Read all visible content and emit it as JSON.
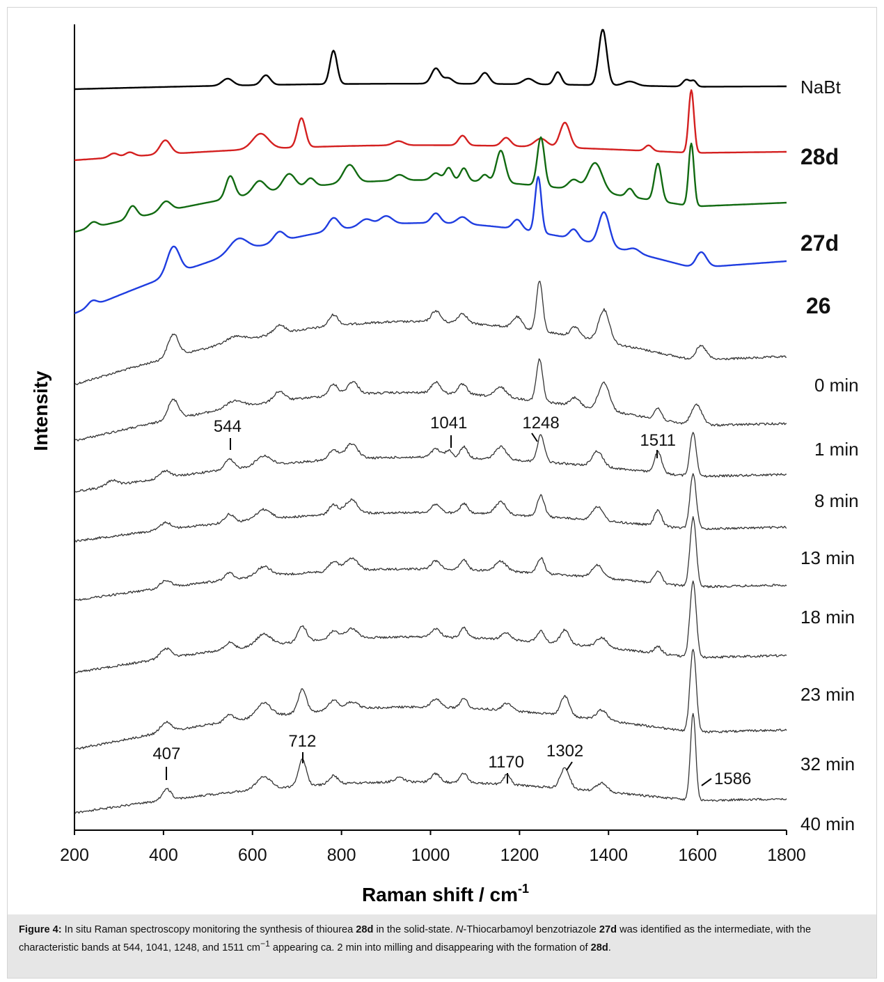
{
  "chart_data": {
    "type": "line",
    "xlabel": "Raman shift / cm",
    "xlabel_superscript": "-1",
    "ylabel": "Intensity",
    "xlim": [
      200,
      1800
    ],
    "xticks": [
      200,
      400,
      600,
      800,
      1000,
      1200,
      1400,
      1600,
      1800
    ],
    "series": [
      {
        "name": "NaBt",
        "bold": false,
        "color": "#000000"
      },
      {
        "name": "28d",
        "bold": true,
        "color": "#d42020"
      },
      {
        "name": "27d",
        "bold": true,
        "color": "#116a11"
      },
      {
        "name": "26",
        "bold": true,
        "color": "#1f3de0"
      },
      {
        "name": "0 min",
        "bold": false,
        "color": "#333333"
      },
      {
        "name": "1 min",
        "bold": false,
        "color": "#333333"
      },
      {
        "name": "8 min",
        "bold": false,
        "color": "#333333"
      },
      {
        "name": "13 min",
        "bold": false,
        "color": "#333333"
      },
      {
        "name": "18 min",
        "bold": false,
        "color": "#333333"
      },
      {
        "name": "23 min",
        "bold": false,
        "color": "#333333"
      },
      {
        "name": "32 min",
        "bold": false,
        "color": "#333333"
      },
      {
        "name": "40 min",
        "bold": false,
        "color": "#333333"
      }
    ],
    "annotations": [
      {
        "text": "544",
        "x": 544,
        "series": "1 min"
      },
      {
        "text": "1041",
        "x": 1041,
        "series": "1 min"
      },
      {
        "text": "1248",
        "x": 1248,
        "series": "1 min"
      },
      {
        "text": "1511",
        "x": 1511,
        "series": "1 min"
      },
      {
        "text": "407",
        "x": 407,
        "series": "40 min"
      },
      {
        "text": "712",
        "x": 712,
        "series": "40 min"
      },
      {
        "text": "1170",
        "x": 1170,
        "series": "40 min"
      },
      {
        "text": "1302",
        "x": 1302,
        "series": "40 min"
      },
      {
        "text": "1586",
        "x": 1586,
        "series": "40 min"
      }
    ]
  },
  "caption": {
    "label": "Figure 4:",
    "p1": " In situ Raman spectroscopy monitoring the synthesis of thiourea ",
    "c1": "28d",
    "p2": " in the solid-state. ",
    "it": "N",
    "p3": "-Thiocarbamoyl benzotriazole ",
    "c2": "27d",
    "p4": " was identified as the intermediate, with the characteristic bands at 544, 1041, 1248, and 1511 cm",
    "sup": "−1",
    "p5": " appearing ca. 2 min into milling and disappearing with the formation of ",
    "c3": "28d",
    "p6": "."
  }
}
